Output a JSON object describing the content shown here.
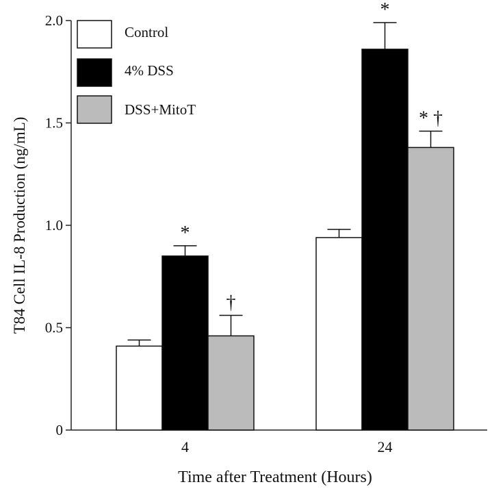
{
  "chart_data": {
    "type": "bar",
    "title": "",
    "xlabel": "Time after Treatment (Hours)",
    "ylabel": "T84 Cell IL-8 Production (ng/mL)",
    "ylim": [
      0,
      2.0
    ],
    "yticks": [
      0,
      0.5,
      1.0,
      1.5,
      2.0
    ],
    "ytick_labels": [
      "0",
      "0.5",
      "1.0",
      "1.5",
      "2.0"
    ],
    "categories": [
      "4",
      "24"
    ],
    "legend_position": "top-left",
    "series": [
      {
        "name": "Control",
        "color": "#ffffff",
        "values": [
          0.41,
          0.94
        ],
        "errors": [
          0.03,
          0.04
        ],
        "annotations": [
          "",
          ""
        ]
      },
      {
        "name": "4% DSS",
        "color": "#000000",
        "values": [
          0.85,
          1.86
        ],
        "errors": [
          0.05,
          0.13
        ],
        "annotations": [
          "*",
          "*"
        ]
      },
      {
        "name": "DSS+MitoT",
        "color": "#bbbbbb",
        "values": [
          0.46,
          1.38
        ],
        "errors": [
          0.1,
          0.08
        ],
        "annotations": [
          "†",
          "* †"
        ]
      }
    ]
  }
}
